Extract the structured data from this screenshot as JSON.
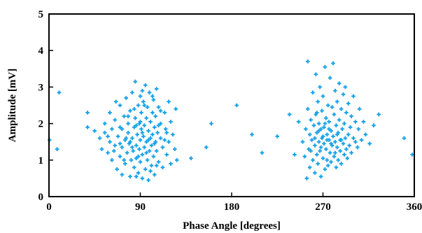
{
  "chart_data": {
    "type": "scatter",
    "xlabel": "Phase Angle [degrees]",
    "ylabel": "Amplitude [mV]",
    "xlim": [
      0,
      360
    ],
    "ylim": [
      0,
      5
    ],
    "xticks": [
      "0",
      "90",
      "180",
      "270",
      "360"
    ],
    "yticks": [
      "0",
      "1",
      "2",
      "3",
      "4",
      "5"
    ],
    "grid": false,
    "marker_color": "#1aa3e8",
    "series": [
      {
        "points": [
          [
            0.5,
            1.55
          ],
          [
            8,
            1.3
          ],
          [
            10,
            2.85
          ],
          [
            38,
            2.3
          ],
          [
            38,
            1.9
          ],
          [
            45,
            1.8
          ],
          [
            50,
            1.6
          ],
          [
            52,
            1.3
          ],
          [
            55,
            1.75
          ],
          [
            55,
            2.0
          ],
          [
            58,
            1.2
          ],
          [
            60,
            1.5
          ],
          [
            60,
            2.3
          ],
          [
            62,
            1.0
          ],
          [
            62,
            1.85
          ],
          [
            65,
            1.4
          ],
          [
            65,
            2.1
          ],
          [
            67,
            0.75
          ],
          [
            68,
            1.65
          ],
          [
            70,
            1.1
          ],
          [
            70,
            2.5
          ],
          [
            70,
            1.9
          ],
          [
            72,
            0.6
          ],
          [
            72,
            1.35
          ],
          [
            74,
            2.2
          ],
          [
            75,
            1.55
          ],
          [
            75,
            0.9
          ],
          [
            76,
            2.7
          ],
          [
            77,
            1.2
          ],
          [
            78,
            1.75
          ],
          [
            78,
            2.0
          ],
          [
            79,
            1.45
          ],
          [
            80,
            0.55
          ],
          [
            80,
            2.35
          ],
          [
            81,
            1.0
          ],
          [
            82,
            1.6
          ],
          [
            82,
            2.85
          ],
          [
            83,
            1.25
          ],
          [
            84,
            1.9
          ],
          [
            84,
            0.8
          ],
          [
            85,
            3.15
          ],
          [
            85,
            2.15
          ],
          [
            86,
            1.4
          ],
          [
            86,
            1.05
          ],
          [
            87,
            1.7
          ],
          [
            88,
            2.5
          ],
          [
            88,
            0.65
          ],
          [
            89,
            1.3
          ],
          [
            89,
            2.0
          ],
          [
            90,
            1.55
          ],
          [
            90,
            2.75
          ],
          [
            90,
            0.95
          ],
          [
            91,
            1.85
          ],
          [
            91,
            2.3
          ],
          [
            92,
            1.15
          ],
          [
            92,
            0.5
          ],
          [
            93,
            1.65
          ],
          [
            93,
            2.6
          ],
          [
            94,
            1.95
          ],
          [
            94,
            1.35
          ],
          [
            95,
            3.05
          ],
          [
            95,
            0.75
          ],
          [
            96,
            2.15
          ],
          [
            96,
            1.5
          ],
          [
            97,
            1.0
          ],
          [
            97,
            2.45
          ],
          [
            98,
            1.8
          ],
          [
            98,
            0.45
          ],
          [
            99,
            1.25
          ],
          [
            99,
            2.85
          ],
          [
            100,
            1.6
          ],
          [
            100,
            2.05
          ],
          [
            101,
            0.85
          ],
          [
            101,
            1.4
          ],
          [
            102,
            2.3
          ],
          [
            102,
            1.7
          ],
          [
            103,
            1.1
          ],
          [
            103,
            2.65
          ],
          [
            104,
            1.9
          ],
          [
            104,
            0.6
          ],
          [
            105,
            1.5
          ],
          [
            105,
            2.2
          ],
          [
            106,
            1.25
          ],
          [
            106,
            2.95
          ],
          [
            107,
            1.75
          ],
          [
            108,
            0.95
          ],
          [
            108,
            2.45
          ],
          [
            110,
            1.6
          ],
          [
            110,
            2.0
          ],
          [
            112,
            1.35
          ],
          [
            112,
            0.8
          ],
          [
            114,
            2.3
          ],
          [
            115,
            1.85
          ],
          [
            116,
            1.15
          ],
          [
            118,
            2.6
          ],
          [
            118,
            1.5
          ],
          [
            120,
            0.9
          ],
          [
            120,
            2.05
          ],
          [
            122,
            1.7
          ],
          [
            124,
            1.3
          ],
          [
            125,
            2.4
          ],
          [
            126,
            1.0
          ],
          [
            80,
            1.5
          ],
          [
            86,
            1.95
          ],
          [
            92,
            1.75
          ],
          [
            96,
            1.2
          ],
          [
            104,
            1.45
          ],
          [
            88,
            1.1
          ],
          [
            84,
            2.4
          ],
          [
            100,
            0.7
          ],
          [
            72,
            1.85
          ],
          [
            66,
            2.6
          ],
          [
            64,
            1.25
          ],
          [
            58,
            1.65
          ],
          [
            76,
            1.6
          ],
          [
            94,
            2.5
          ],
          [
            108,
            1.95
          ],
          [
            114,
            1.55
          ],
          [
            102,
            2.75
          ],
          [
            90,
            2.05
          ],
          [
            82,
            1.35
          ],
          [
            74,
            1.0
          ],
          [
            98,
            1.55
          ],
          [
            106,
            0.85
          ],
          [
            92,
            2.9
          ],
          [
            116,
            1.75
          ],
          [
            86,
            0.55
          ],
          [
            110,
            2.35
          ],
          [
            78,
            2.2
          ],
          [
            70,
            1.45
          ],
          [
            140,
            1.05
          ],
          [
            155,
            1.35
          ],
          [
            160,
            2.0
          ],
          [
            185,
            2.5
          ],
          [
            200,
            1.7
          ],
          [
            210,
            1.2
          ],
          [
            225,
            1.65
          ],
          [
            237,
            2.25
          ],
          [
            242,
            1.15
          ],
          [
            246,
            2.05
          ],
          [
            250,
            1.5
          ],
          [
            252,
            1.1
          ],
          [
            253,
            1.85
          ],
          [
            254,
            0.5
          ],
          [
            255,
            2.4
          ],
          [
            255,
            3.7
          ],
          [
            256,
            1.3
          ],
          [
            257,
            1.7
          ],
          [
            257,
            0.8
          ],
          [
            258,
            2.1
          ],
          [
            259,
            1.55
          ],
          [
            260,
            2.85
          ],
          [
            260,
            1.0
          ],
          [
            261,
            1.95
          ],
          [
            262,
            1.4
          ],
          [
            262,
            0.65
          ],
          [
            263,
            2.25
          ],
          [
            263,
            3.35
          ],
          [
            264,
            1.75
          ],
          [
            264,
            1.15
          ],
          [
            265,
            2.6
          ],
          [
            265,
            0.9
          ],
          [
            266,
            1.5
          ],
          [
            266,
            2.0
          ],
          [
            267,
            1.25
          ],
          [
            267,
            3.0
          ],
          [
            268,
            1.85
          ],
          [
            268,
            0.55
          ],
          [
            269,
            1.6
          ],
          [
            269,
            2.35
          ],
          [
            270,
            1.05
          ],
          [
            270,
            2.75
          ],
          [
            271,
            1.45
          ],
          [
            271,
            1.9
          ],
          [
            272,
            0.75
          ],
          [
            272,
            3.55
          ],
          [
            273,
            1.3
          ],
          [
            273,
            2.15
          ],
          [
            274,
            1.7
          ],
          [
            274,
            1.0
          ],
          [
            275,
            2.5
          ],
          [
            275,
            0.85
          ],
          [
            276,
            1.55
          ],
          [
            276,
            2.05
          ],
          [
            277,
            1.2
          ],
          [
            277,
            3.25
          ],
          [
            278,
            1.8
          ],
          [
            278,
            0.95
          ],
          [
            279,
            1.4
          ],
          [
            279,
            2.45
          ],
          [
            280,
            3.65
          ],
          [
            280,
            1.65
          ],
          [
            281,
            1.1
          ],
          [
            281,
            2.25
          ],
          [
            282,
            1.5
          ],
          [
            282,
            2.9
          ],
          [
            283,
            0.8
          ],
          [
            283,
            1.95
          ],
          [
            284,
            1.35
          ],
          [
            284,
            2.6
          ],
          [
            285,
            1.75
          ],
          [
            285,
            1.0
          ],
          [
            286,
            2.1
          ],
          [
            286,
            3.1
          ],
          [
            287,
            1.55
          ],
          [
            287,
            1.25
          ],
          [
            288,
            2.4
          ],
          [
            288,
            0.9
          ],
          [
            289,
            1.85
          ],
          [
            290,
            1.45
          ],
          [
            290,
            2.8
          ],
          [
            291,
            1.15
          ],
          [
            291,
            2.0
          ],
          [
            292,
            1.6
          ],
          [
            292,
            3.0
          ],
          [
            293,
            1.3
          ],
          [
            293,
            2.3
          ],
          [
            294,
            1.05
          ],
          [
            295,
            1.7
          ],
          [
            295,
            2.55
          ],
          [
            296,
            1.4
          ],
          [
            297,
            1.9
          ],
          [
            298,
            2.2
          ],
          [
            298,
            1.2
          ],
          [
            300,
            1.6
          ],
          [
            300,
            2.75
          ],
          [
            302,
            1.5
          ],
          [
            302,
            2.05
          ],
          [
            304,
            1.35
          ],
          [
            305,
            1.85
          ],
          [
            306,
            2.4
          ],
          [
            308,
            1.55
          ],
          [
            310,
            2.05
          ],
          [
            312,
            1.7
          ],
          [
            316,
            1.45
          ],
          [
            320,
            1.95
          ],
          [
            325,
            2.25
          ],
          [
            262,
            1.6
          ],
          [
            268,
            1.35
          ],
          [
            274,
            1.55
          ],
          [
            266,
            1.8
          ],
          [
            272,
            2.0
          ],
          [
            278,
            1.45
          ],
          [
            284,
            1.7
          ],
          [
            258,
            1.25
          ],
          [
            288,
            1.55
          ],
          [
            270,
            1.65
          ],
          [
            276,
            1.85
          ],
          [
            282,
            1.2
          ],
          [
            264,
            2.3
          ],
          [
            350,
            1.6
          ],
          [
            358,
            1.15
          ]
        ]
      }
    ]
  }
}
